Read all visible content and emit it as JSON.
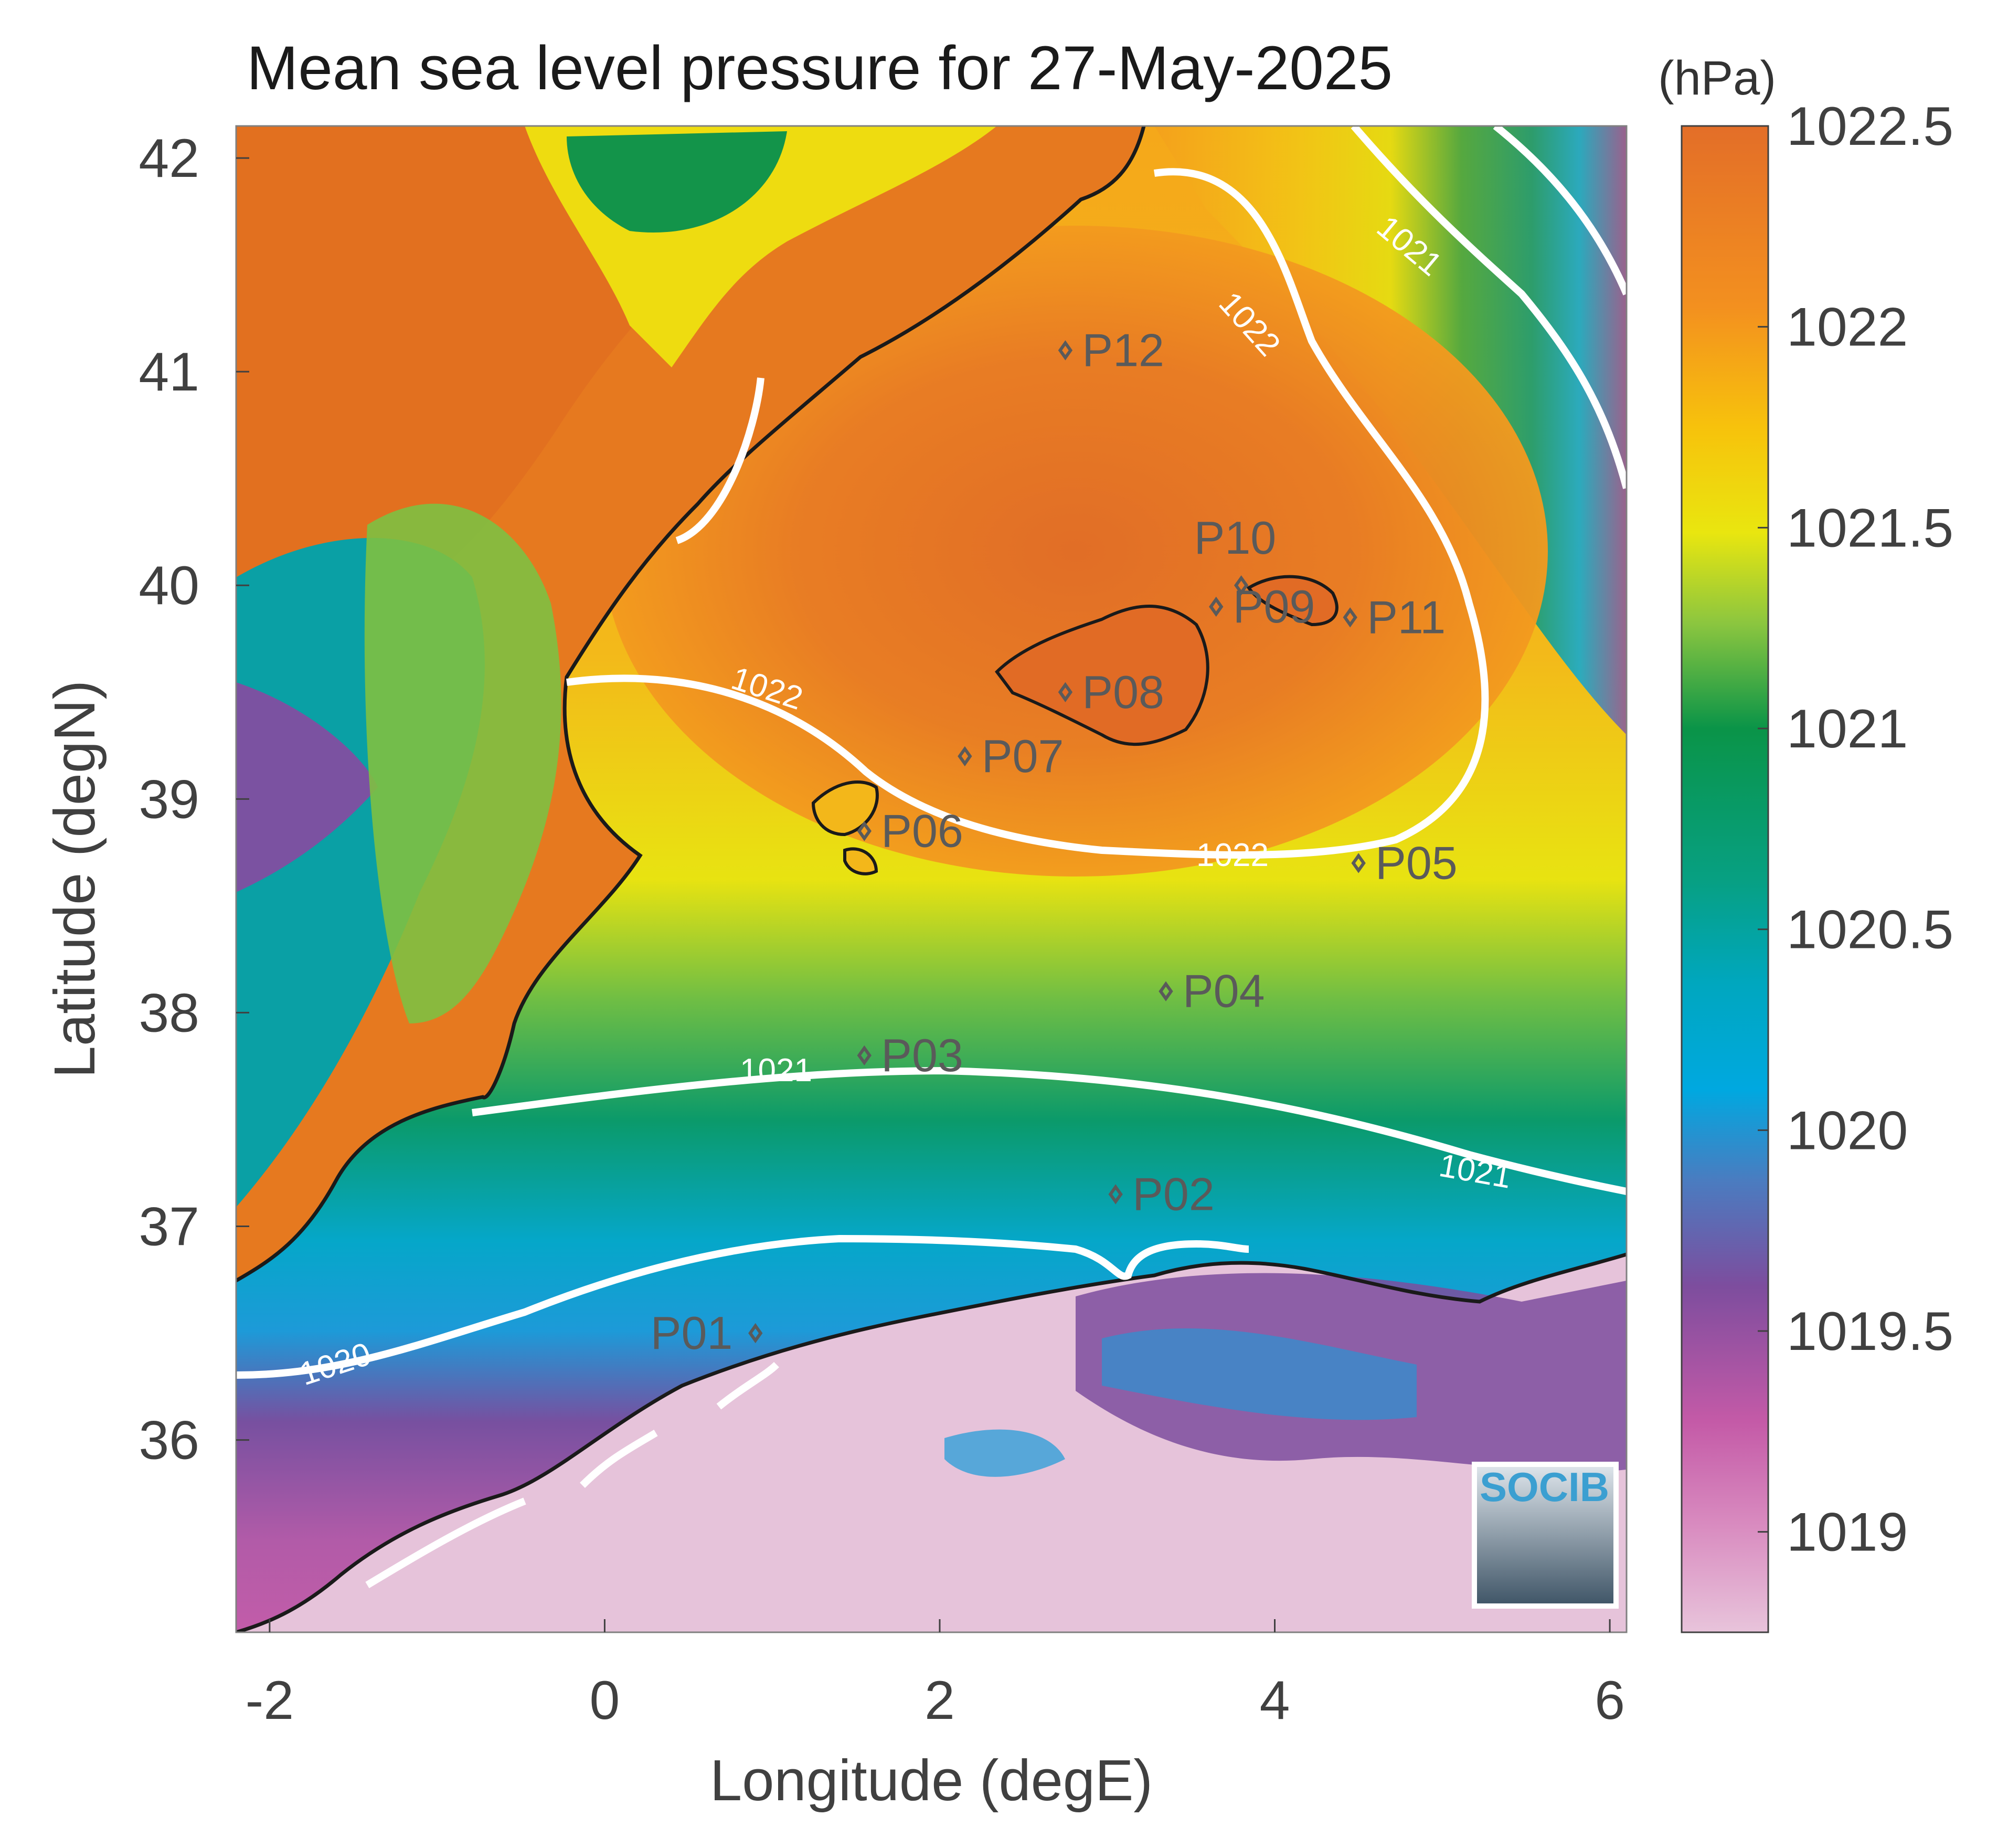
{
  "title": "Mean sea level pressure for 27-May-2025",
  "axes": {
    "xlabel": "Longitude (degE)",
    "ylabel": "Latitude (degN)",
    "xlim": [
      -2.2,
      6.1
    ],
    "ylim": [
      35.1,
      42.15
    ],
    "xticks": [
      "-2",
      "0",
      "2",
      "4",
      "6"
    ],
    "yticks": [
      "36",
      "37",
      "38",
      "39",
      "40",
      "41",
      "42"
    ]
  },
  "colorbar": {
    "unit": "(hPa)",
    "range": [
      1018.75,
      1022.5
    ],
    "ticks": [
      "1019",
      "1019.5",
      "1020",
      "1020.5",
      "1021",
      "1021.5",
      "1022",
      "1022.5"
    ],
    "colormap": [
      "#e8c4db",
      "#c45aa7",
      "#7d4d9e",
      "#3a8cc8",
      "#00a8e0",
      "#07a082",
      "#0a9448",
      "#8cc63f",
      "#e9e60f",
      "#f7c20c",
      "#f3901f",
      "#e36e28"
    ]
  },
  "contours": [
    {
      "level": "1022",
      "labels": [
        "1022",
        "1022",
        "1022"
      ]
    },
    {
      "level": "1021",
      "labels": [
        "1021",
        "1021",
        "1021"
      ]
    },
    {
      "level": "1020",
      "labels": [
        "1020"
      ]
    }
  ],
  "markers": [
    {
      "id": "P01",
      "lon": 0.9,
      "lat": 36.5
    },
    {
      "id": "P02",
      "lon": 3.05,
      "lat": 37.15
    },
    {
      "id": "P03",
      "lon": 1.55,
      "lat": 37.8
    },
    {
      "id": "P04",
      "lon": 3.35,
      "lat": 38.1
    },
    {
      "id": "P05",
      "lon": 4.5,
      "lat": 38.7
    },
    {
      "id": "P06",
      "lon": 1.55,
      "lat": 38.85
    },
    {
      "id": "P07",
      "lon": 2.15,
      "lat": 39.2
    },
    {
      "id": "P08",
      "lon": 2.75,
      "lat": 39.5
    },
    {
      "id": "P09",
      "lon": 3.65,
      "lat": 39.9
    },
    {
      "id": "P10",
      "lon": 3.8,
      "lat": 40.0
    },
    {
      "id": "P11",
      "lon": 4.45,
      "lat": 39.85
    },
    {
      "id": "P12",
      "lon": 2.75,
      "lat": 41.1
    }
  ],
  "logo": {
    "text": "SOCIB"
  }
}
